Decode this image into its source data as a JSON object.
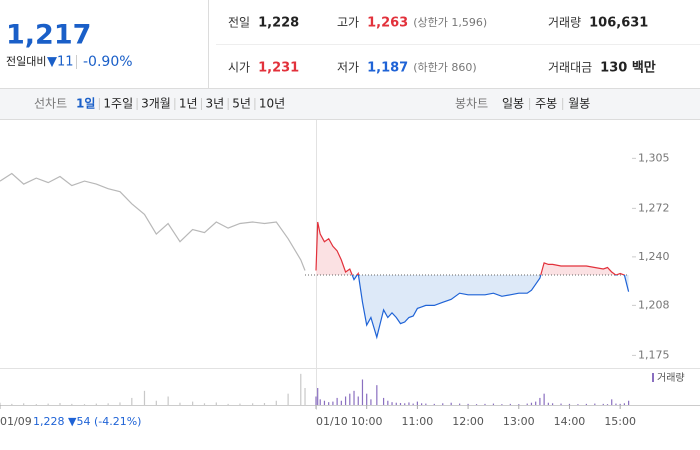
{
  "header": {
    "price": "1,217",
    "change_label": "전일대비",
    "change": "▼11",
    "change_rate": "-0.90%",
    "info": [
      {
        "label": "전일",
        "value": "1,228"
      },
      {
        "label": "고가",
        "value": "1,263",
        "note": "(상한가 1,596)"
      },
      {
        "label": "거래량",
        "value": "106,631"
      },
      {
        "label": "시가",
        "value": "1,231"
      },
      {
        "label": "저가",
        "value": "1,187",
        "note": "(하한가 860)"
      },
      {
        "label": "거래대금",
        "value": "130 백만"
      }
    ]
  },
  "tabs": {
    "line_label": "선차트",
    "line_tabs": [
      "1일",
      "1주일",
      "3개월",
      "1년",
      "3년",
      "5년",
      "10년"
    ],
    "active": 0,
    "candle_label": "봉차트",
    "candle_tabs": [
      "일봉",
      "주봉",
      "월봉"
    ]
  },
  "chart_data": {
    "type": "line",
    "grid": false,
    "prev_day_label": "1,228 ▼54 (-4.21%)",
    "baseline": 1228,
    "xlim": [
      -374,
      374
    ],
    "xticks": [
      {
        "value": -374,
        "label": "01/09"
      },
      {
        "value": 0,
        "label": "01/10"
      },
      {
        "value": 60,
        "label": "10:00"
      },
      {
        "value": 120,
        "label": "11:00"
      },
      {
        "value": 180,
        "label": "12:00"
      },
      {
        "value": 240,
        "label": "13:00"
      },
      {
        "value": 300,
        "label": "14:00"
      },
      {
        "value": 360,
        "label": "15:00"
      }
    ],
    "ylim": [
      1168,
      1327
    ],
    "yticks": [
      {
        "value": 1305,
        "label": "1,305"
      },
      {
        "value": 1272,
        "label": "1,272"
      },
      {
        "value": 1240,
        "label": "1,240"
      },
      {
        "value": 1208,
        "label": "1,208"
      },
      {
        "value": 1175,
        "label": "1,175"
      }
    ],
    "series": [
      {
        "color": "#b8b8b8",
        "volume_color": "#c8c8c8",
        "x": [
          -374,
          -360,
          -346,
          -331,
          -317,
          -303,
          -289,
          -274,
          -260,
          -246,
          -232,
          -218,
          -203,
          -189,
          -175,
          -161,
          -146,
          -132,
          -118,
          -104,
          -90,
          -75,
          -61,
          -47,
          -33,
          -18,
          -13
        ],
        "values": [
          1290,
          1295,
          1288,
          1292,
          1289,
          1293,
          1287,
          1290,
          1288,
          1285,
          1283,
          1275,
          1268,
          1255,
          1262,
          1250,
          1258,
          1256,
          1263,
          1259,
          1262,
          1263,
          1262,
          1263,
          1252,
          1238,
          1231
        ],
        "volume": [
          800,
          400,
          600,
          300,
          500,
          700,
          400,
          300,
          500,
          600,
          900,
          2500,
          5000,
          1500,
          3000,
          800,
          1200,
          600,
          900,
          400,
          500,
          600,
          700,
          1500,
          4000,
          11000,
          6000
        ]
      },
      {
        "color": "#e2313b",
        "color_below": "#1f63d6",
        "fill": "#fbe1e3",
        "fill_below": "#dde9f8",
        "volume_color": "#8a6fc0",
        "x": [
          0,
          2,
          5,
          10,
          15,
          20,
          25,
          30,
          35,
          40,
          45,
          50,
          55,
          60,
          65,
          72,
          80,
          85,
          90,
          95,
          100,
          105,
          110,
          115,
          120,
          125,
          130,
          140,
          150,
          160,
          170,
          180,
          190,
          200,
          210,
          220,
          230,
          240,
          250,
          255,
          260,
          265,
          270,
          275,
          280,
          290,
          300,
          310,
          320,
          330,
          340,
          345,
          350,
          355,
          360,
          365,
          370
        ],
        "values": [
          1231,
          1263,
          1255,
          1250,
          1252,
          1247,
          1244,
          1238,
          1230,
          1232,
          1225,
          1229,
          1210,
          1195,
          1200,
          1187,
          1205,
          1200,
          1203,
          1200,
          1196,
          1197,
          1200,
          1201,
          1206,
          1207,
          1208,
          1208,
          1210,
          1212,
          1216,
          1215,
          1215,
          1215,
          1216,
          1214,
          1215,
          1216,
          1216,
          1218,
          1222,
          1226,
          1236,
          1235,
          1235,
          1234,
          1234,
          1234,
          1234,
          1233,
          1232,
          1233,
          1230,
          1228,
          1229,
          1228,
          1217
        ],
        "volume": [
          3000,
          6000,
          2000,
          1500,
          1000,
          1200,
          2500,
          1500,
          3000,
          4000,
          5000,
          3000,
          9000,
          4000,
          2000,
          7000,
          2500,
          1500,
          1000,
          800,
          700,
          600,
          900,
          500,
          1200,
          600,
          500,
          400,
          600,
          800,
          500,
          400,
          300,
          400,
          500,
          300,
          400,
          300,
          500,
          800,
          1200,
          2500,
          4000,
          800,
          600,
          500,
          400,
          300,
          400,
          500,
          400,
          300,
          2000,
          500,
          400,
          600,
          1500
        ]
      }
    ],
    "volume_ylim": [
      0,
      12000
    ],
    "volume_legend": "거래량"
  }
}
